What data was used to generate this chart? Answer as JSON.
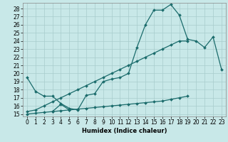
{
  "xlabel": "Humidex (Indice chaleur)",
  "bg_color": "#c8e8e8",
  "grid_color": "#a8cccc",
  "line_color": "#1a6b6b",
  "xlim": [
    -0.5,
    23.5
  ],
  "ylim": [
    14.7,
    28.7
  ],
  "yticks": [
    15,
    16,
    17,
    18,
    19,
    20,
    21,
    22,
    23,
    24,
    25,
    26,
    27,
    28
  ],
  "xticks": [
    0,
    1,
    2,
    3,
    4,
    5,
    6,
    7,
    8,
    9,
    10,
    11,
    12,
    13,
    14,
    15,
    16,
    17,
    18,
    19,
    20,
    21,
    22,
    23
  ],
  "line1_x": [
    0,
    1,
    2,
    3,
    4,
    5,
    6,
    7,
    8,
    9,
    10,
    11,
    12,
    13,
    14,
    15,
    16,
    17,
    18,
    19,
    20,
    21,
    22,
    23
  ],
  "line1_y": [
    19.5,
    17.8,
    17.2,
    17.2,
    16.3,
    15.7,
    15.5,
    17.3,
    17.5,
    19.0,
    19.3,
    19.5,
    20.0,
    23.2,
    26.0,
    27.8,
    27.8,
    28.5,
    27.2,
    24.2,
    24.0,
    23.2,
    24.5,
    20.5
  ],
  "line2_x": [
    0,
    1,
    2,
    3,
    4,
    5,
    6,
    7,
    8,
    9,
    10,
    11,
    12,
    13,
    14,
    15,
    16,
    17,
    18,
    19,
    20,
    21,
    22,
    23
  ],
  "line2_y": [
    15.3,
    15.5,
    16.0,
    16.5,
    17.0,
    17.5,
    18.0,
    18.5,
    19.0,
    19.5,
    20.0,
    20.5,
    21.0,
    21.5,
    22.0,
    22.5,
    23.0,
    23.5,
    24.0,
    24.0,
    null,
    null,
    null,
    null
  ],
  "line3_x": [
    0,
    1,
    2,
    3,
    4,
    5,
    6,
    7,
    8,
    9,
    10,
    11,
    12,
    13,
    14,
    15,
    16,
    17,
    18,
    19,
    20,
    21,
    22,
    23
  ],
  "line3_y": [
    15.0,
    15.1,
    15.2,
    15.3,
    15.4,
    15.5,
    15.6,
    15.7,
    15.8,
    15.9,
    16.0,
    16.1,
    16.2,
    16.3,
    16.4,
    16.5,
    16.6,
    16.8,
    17.0,
    17.2,
    null,
    null,
    null,
    null
  ],
  "line4_x": [
    3,
    4,
    5
  ],
  "line4_y": [
    15.3,
    16.2,
    15.5
  ],
  "markersize": 2.0,
  "linewidth": 0.9,
  "tick_fontsize": 5.5
}
